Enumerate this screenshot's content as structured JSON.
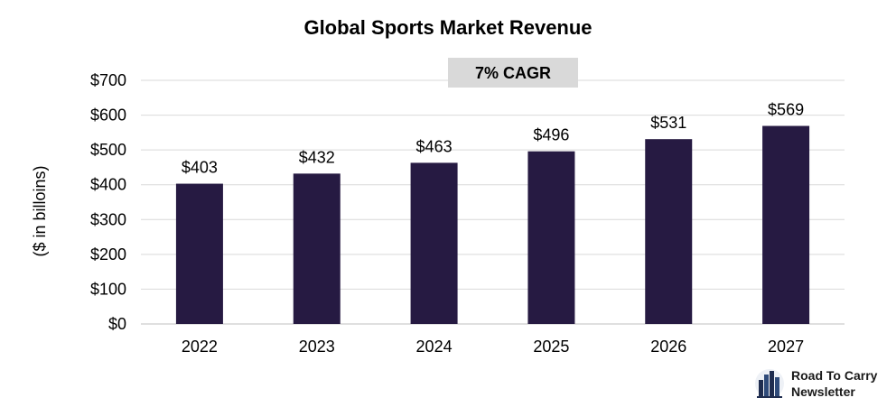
{
  "chart_data": {
    "type": "bar",
    "title": "Global Sports Market Revenue",
    "ylabel": "($ in billoins)",
    "xlabel": "",
    "categories": [
      "2022",
      "2023",
      "2024",
      "2025",
      "2026",
      "2027"
    ],
    "values": [
      403,
      432,
      463,
      496,
      531,
      569
    ],
    "data_labels": [
      "$403",
      "$432",
      "$463",
      "$496",
      "$531",
      "$569"
    ],
    "ylim": [
      0,
      700
    ],
    "yticks": [
      0,
      100,
      200,
      300,
      400,
      500,
      600,
      700
    ],
    "ytick_labels": [
      "$0",
      "$100",
      "$200",
      "$300",
      "$400",
      "$500",
      "$600",
      "$700"
    ],
    "annotation": "7% CAGR",
    "grid": true,
    "legend": "none",
    "bar_color": "#261a42",
    "annotation_color": "#d9d9d9"
  },
  "watermark": {
    "line1": "Road To Carry",
    "line2": "Newsletter",
    "logo_icon": "city-skyline-icon"
  }
}
